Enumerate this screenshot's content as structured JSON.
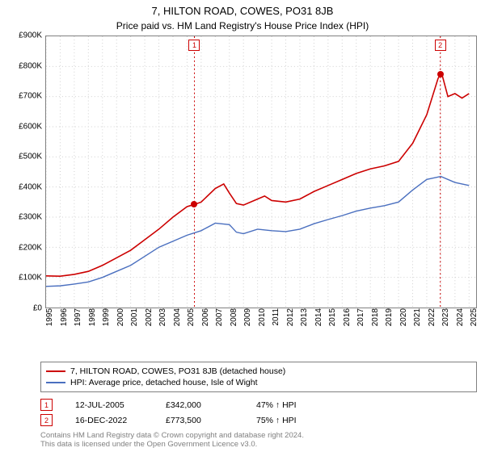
{
  "title": "7, HILTON ROAD, COWES, PO31 8JB",
  "subtitle": "Price paid vs. HM Land Registry's House Price Index (HPI)",
  "chart": {
    "type": "line",
    "xlim": [
      1995,
      2025.5
    ],
    "ylim": [
      0,
      900
    ],
    "y_ticks": [
      0,
      100,
      200,
      300,
      400,
      500,
      600,
      700,
      800,
      900
    ],
    "y_tick_labels": [
      "£0",
      "£100K",
      "£200K",
      "£300K",
      "£400K",
      "£500K",
      "£600K",
      "£700K",
      "£800K",
      "£900K"
    ],
    "x_ticks": [
      1995,
      1996,
      1997,
      1998,
      1999,
      2000,
      2001,
      2002,
      2003,
      2004,
      2005,
      2006,
      2007,
      2008,
      2009,
      2010,
      2011,
      2012,
      2013,
      2014,
      2015,
      2016,
      2017,
      2018,
      2019,
      2020,
      2021,
      2022,
      2023,
      2024,
      2025
    ],
    "grid_color": "#d0d0d0",
    "background_color": "#ffffff",
    "axis_fontsize": 10,
    "series": [
      {
        "name": "price_paid",
        "label": "7, HILTON ROAD, COWES, PO31 8JB (detached house)",
        "color": "#cc0000",
        "line_width": 1.6,
        "points": [
          [
            1995,
            105
          ],
          [
            1996,
            104
          ],
          [
            1997,
            110
          ],
          [
            1998,
            120
          ],
          [
            1999,
            140
          ],
          [
            2000,
            165
          ],
          [
            2001,
            190
          ],
          [
            2002,
            225
          ],
          [
            2003,
            260
          ],
          [
            2004,
            300
          ],
          [
            2005,
            335
          ],
          [
            2005.52,
            342
          ],
          [
            2006,
            350
          ],
          [
            2007,
            395
          ],
          [
            2007.6,
            410
          ],
          [
            2008,
            380
          ],
          [
            2008.5,
            345
          ],
          [
            2009,
            340
          ],
          [
            2010,
            360
          ],
          [
            2010.5,
            370
          ],
          [
            2011,
            355
          ],
          [
            2012,
            350
          ],
          [
            2013,
            360
          ],
          [
            2014,
            385
          ],
          [
            2015,
            405
          ],
          [
            2016,
            425
          ],
          [
            2017,
            445
          ],
          [
            2018,
            460
          ],
          [
            2019,
            470
          ],
          [
            2020,
            485
          ],
          [
            2021,
            545
          ],
          [
            2022,
            640
          ],
          [
            2022.8,
            760
          ],
          [
            2022.96,
            773
          ],
          [
            2023.1,
            770
          ],
          [
            2023.5,
            700
          ],
          [
            2024,
            710
          ],
          [
            2024.5,
            695
          ],
          [
            2025,
            710
          ]
        ]
      },
      {
        "name": "hpi",
        "label": "HPI: Average price, detached house, Isle of Wight",
        "color": "#4a6fbf",
        "line_width": 1.4,
        "points": [
          [
            1995,
            70
          ],
          [
            1996,
            72
          ],
          [
            1997,
            78
          ],
          [
            1998,
            85
          ],
          [
            1999,
            100
          ],
          [
            2000,
            120
          ],
          [
            2001,
            140
          ],
          [
            2002,
            170
          ],
          [
            2003,
            200
          ],
          [
            2004,
            220
          ],
          [
            2005,
            240
          ],
          [
            2006,
            255
          ],
          [
            2007,
            280
          ],
          [
            2008,
            275
          ],
          [
            2008.5,
            250
          ],
          [
            2009,
            245
          ],
          [
            2010,
            260
          ],
          [
            2011,
            255
          ],
          [
            2012,
            252
          ],
          [
            2013,
            260
          ],
          [
            2014,
            278
          ],
          [
            2015,
            292
          ],
          [
            2016,
            305
          ],
          [
            2017,
            320
          ],
          [
            2018,
            330
          ],
          [
            2019,
            338
          ],
          [
            2020,
            350
          ],
          [
            2021,
            390
          ],
          [
            2022,
            425
          ],
          [
            2023,
            435
          ],
          [
            2024,
            415
          ],
          [
            2025,
            405
          ]
        ]
      }
    ],
    "markers": [
      {
        "id": 1,
        "label": "1",
        "x": 2005.52,
        "y": 342,
        "color": "#cc0000",
        "line_dash": true
      },
      {
        "id": 2,
        "label": "2",
        "x": 2022.96,
        "y": 773,
        "color": "#cc0000",
        "line_dash": true
      }
    ]
  },
  "legend": {
    "rows": [
      {
        "color": "#cc0000",
        "label_key": "chart.series.0.label"
      },
      {
        "color": "#4a6fbf",
        "label_key": "chart.series.1.label"
      }
    ]
  },
  "sales": [
    {
      "badge": "1",
      "badge_color": "#cc0000",
      "date": "12-JUL-2005",
      "price": "£342,000",
      "hpi": "47% ↑ HPI"
    },
    {
      "badge": "2",
      "badge_color": "#cc0000",
      "date": "16-DEC-2022",
      "price": "£773,500",
      "hpi": "75% ↑ HPI"
    }
  ],
  "footer_line1": "Contains HM Land Registry data © Crown copyright and database right 2024.",
  "footer_line2": "This data is licensed under the Open Government Licence v3.0."
}
